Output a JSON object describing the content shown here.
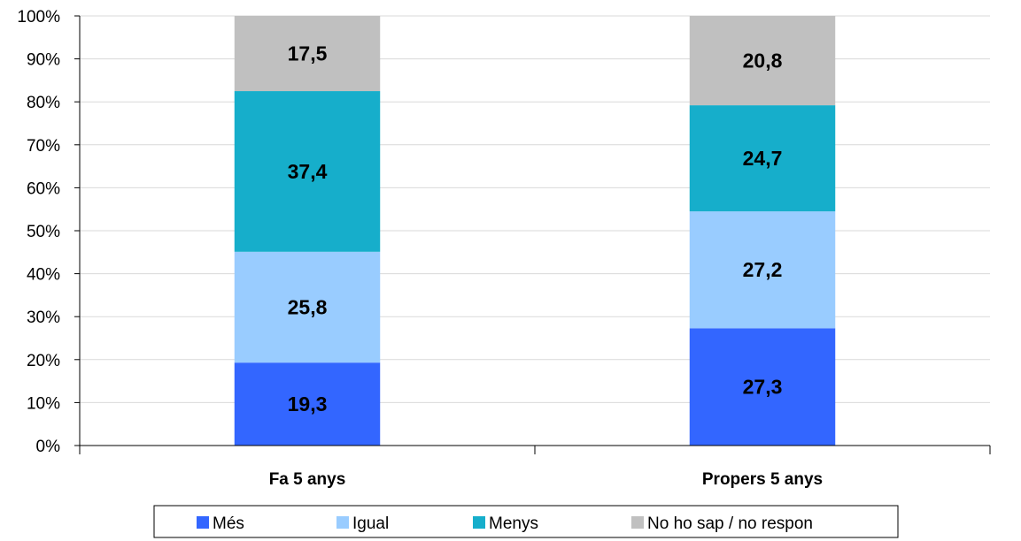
{
  "chart_data": {
    "type": "bar",
    "stacked": true,
    "percent": true,
    "categories": [
      "Fa 5 anys",
      "Propers 5 anys"
    ],
    "series": [
      {
        "name": "Més",
        "color": "#3366FF",
        "values": [
          19.3,
          27.3
        ],
        "labels": [
          "19,3",
          "27,3"
        ]
      },
      {
        "name": "Igual",
        "color": "#99CCFF",
        "values": [
          25.8,
          27.2
        ],
        "labels": [
          "25,8",
          "27,2"
        ]
      },
      {
        "name": "Menys",
        "color": "#16AECB",
        "values": [
          37.4,
          24.7
        ],
        "labels": [
          "37,4",
          "24,7"
        ]
      },
      {
        "name": "No ho sap / no respon",
        "color": "#C0C0C0",
        "values": [
          17.5,
          20.8
        ],
        "labels": [
          "17,5",
          "20,8"
        ]
      }
    ],
    "ylim": [
      0,
      100
    ],
    "yticks": [
      "0%",
      "10%",
      "20%",
      "30%",
      "40%",
      "50%",
      "60%",
      "70%",
      "80%",
      "90%",
      "100%"
    ],
    "grid": true,
    "legend_position": "bottom"
  }
}
